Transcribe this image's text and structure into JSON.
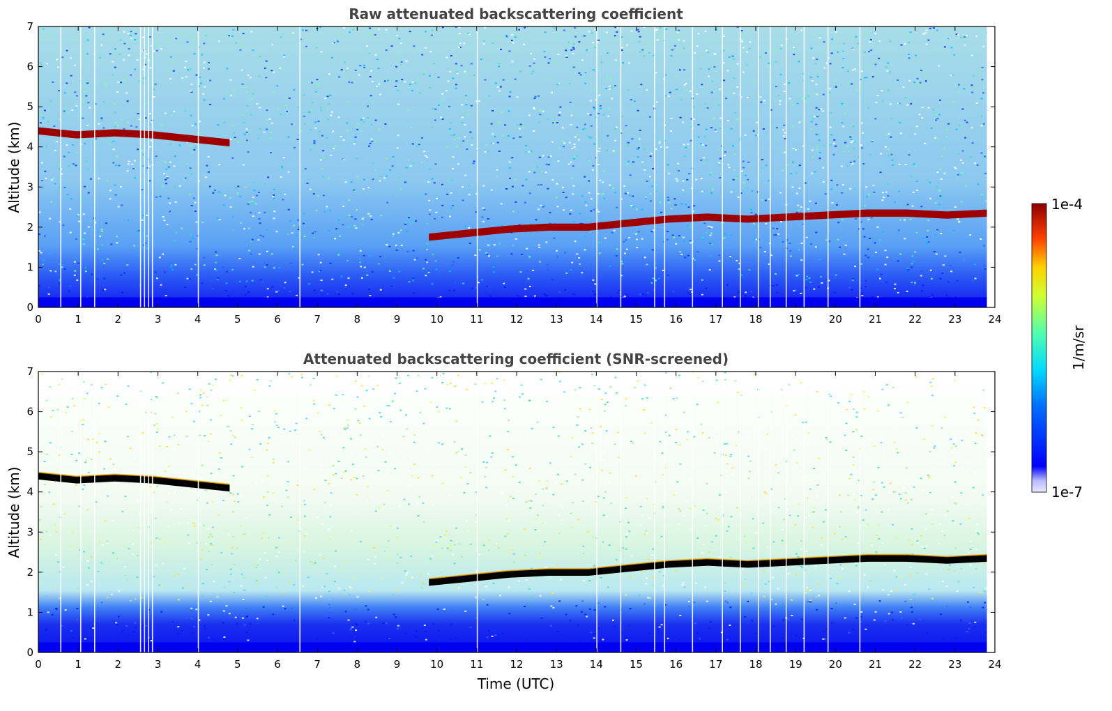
{
  "chart_data": [
    {
      "type": "heatmap",
      "title": "Raw attenuated backscattering coefficient",
      "xlabel": "",
      "ylabel": "Altitude (km)",
      "xlim": [
        0,
        24
      ],
      "ylim": [
        0,
        7
      ],
      "x_ticks": [
        "0",
        "1",
        "2",
        "3",
        "4",
        "5",
        "6",
        "7",
        "8",
        "9",
        "10",
        "11",
        "12",
        "13",
        "14",
        "15",
        "16",
        "17",
        "18",
        "19",
        "20",
        "21",
        "22",
        "23",
        "24"
      ],
      "y_ticks": [
        "0",
        "1",
        "2",
        "3",
        "4",
        "5",
        "6",
        "7"
      ],
      "layers": [
        {
          "start": 0.0,
          "end": 4.8,
          "altitude": [
            4.4,
            4.3,
            4.35,
            4.3,
            4.2,
            4.1
          ]
        },
        {
          "start": 9.8,
          "end": 23.8,
          "altitude": [
            1.75,
            1.85,
            1.95,
            2.0,
            2.0,
            2.1,
            2.2,
            2.25,
            2.2,
            2.25,
            2.3,
            2.35,
            2.35,
            2.3,
            2.35
          ]
        }
      ],
      "near_surface_band_top": 0.6,
      "screened": false
    },
    {
      "type": "heatmap",
      "title": "Attenuated backscattering coefficient (SNR-screened)",
      "xlabel": "Time (UTC)",
      "ylabel": "Altitude (km)",
      "xlim": [
        0,
        24
      ],
      "ylim": [
        0,
        7
      ],
      "x_ticks": [
        "0",
        "1",
        "2",
        "3",
        "4",
        "5",
        "6",
        "7",
        "8",
        "9",
        "10",
        "11",
        "12",
        "13",
        "14",
        "15",
        "16",
        "17",
        "18",
        "19",
        "20",
        "21",
        "22",
        "23",
        "24"
      ],
      "y_ticks": [
        "0",
        "1",
        "2",
        "3",
        "4",
        "5",
        "6",
        "7"
      ],
      "layers": [
        {
          "start": 0.0,
          "end": 4.8,
          "altitude": [
            4.4,
            4.3,
            4.35,
            4.3,
            4.2,
            4.1
          ]
        },
        {
          "start": 9.8,
          "end": 23.8,
          "altitude": [
            1.75,
            1.85,
            1.95,
            2.0,
            2.0,
            2.1,
            2.2,
            2.25,
            2.2,
            2.25,
            2.3,
            2.35,
            2.35,
            2.3,
            2.35
          ]
        }
      ],
      "near_surface_band_top": 1.3,
      "screened": true
    }
  ],
  "colorbar": {
    "max_label": "1e-4",
    "min_label": "1e-7",
    "label": "1/m/sr",
    "scale": "log",
    "colormap": "jet"
  },
  "colors": {
    "title": "#444444",
    "surface": "#0000ee",
    "layer_raw": "#9e0000",
    "layer_screened": "#000000"
  }
}
